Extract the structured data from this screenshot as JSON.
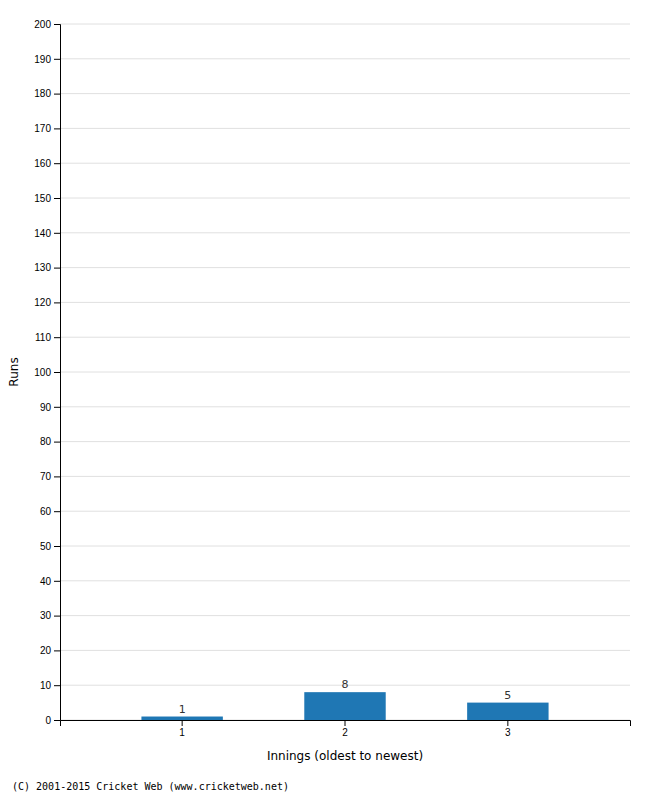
{
  "chart_data": {
    "type": "bar",
    "xlabel": "Innings (oldest to newest)",
    "ylabel": "Runs",
    "categories": [
      "1",
      "2",
      "3"
    ],
    "values": [
      1,
      8,
      5
    ],
    "ylim": [
      0,
      200
    ],
    "yticks": [
      0,
      10,
      20,
      30,
      40,
      50,
      60,
      70,
      80,
      90,
      100,
      110,
      120,
      130,
      140,
      150,
      160,
      170,
      180,
      190,
      200
    ],
    "grid": true,
    "data_labels": true,
    "annotations": [
      "(C) 2001-2015 Cricket Web (www.cricketweb.net)"
    ]
  }
}
